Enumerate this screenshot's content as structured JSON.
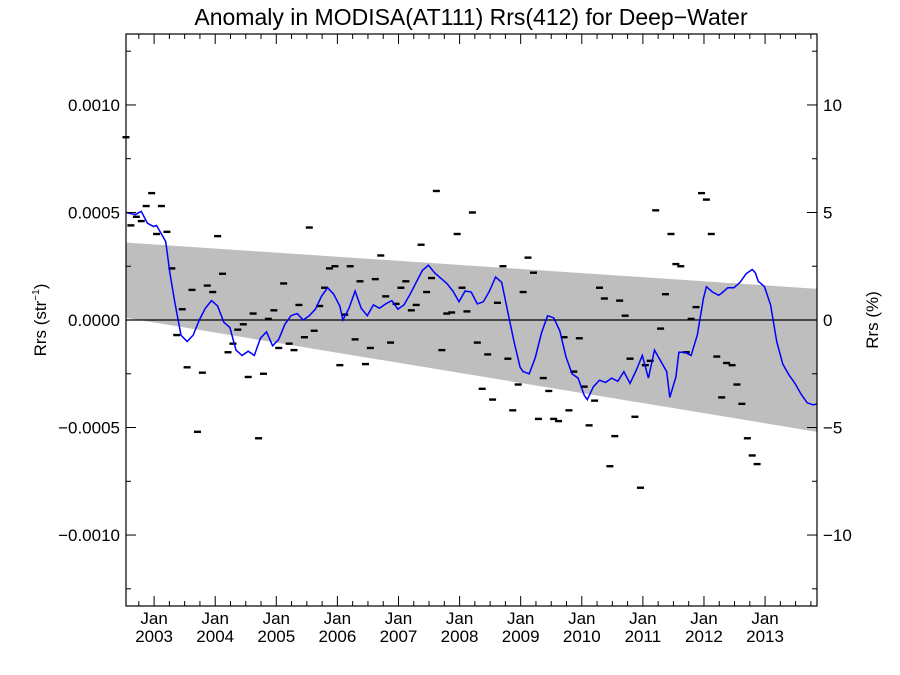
{
  "chart_data": {
    "type": "line",
    "title": "Anomaly in MODISA(AT111) Rrs(412) for Deep−Water",
    "ylabel_left": {
      "base": "Rrs (str",
      "sup": "−1",
      "tail": ")"
    },
    "ylabel_right": "Rrs (%)",
    "xlim": [
      2002.54,
      2013.85
    ],
    "ylim": [
      -0.00133,
      0.00133
    ],
    "right_ylim": [
      -13.3,
      13.3
    ],
    "grid": false,
    "x_ticks": [
      {
        "month": "Jan",
        "year": "2003",
        "x": 2003.0
      },
      {
        "month": "Jan",
        "year": "2004",
        "x": 2004.0
      },
      {
        "month": "Jan",
        "year": "2005",
        "x": 2005.0
      },
      {
        "month": "Jan",
        "year": "2006",
        "x": 2006.0
      },
      {
        "month": "Jan",
        "year": "2007",
        "x": 2007.0
      },
      {
        "month": "Jan",
        "year": "2008",
        "x": 2008.0
      },
      {
        "month": "Jan",
        "year": "2009",
        "x": 2009.0
      },
      {
        "month": "Jan",
        "year": "2010",
        "x": 2010.0
      },
      {
        "month": "Jan",
        "year": "2011",
        "x": 2011.0
      },
      {
        "month": "Jan",
        "year": "2012",
        "x": 2012.0
      },
      {
        "month": "Jan",
        "year": "2013",
        "x": 2013.0
      }
    ],
    "y_ticks_left": [
      {
        "value": 0.001,
        "label": "0.0010"
      },
      {
        "value": 0.0005,
        "label": "0.0005"
      },
      {
        "value": 0.0,
        "label": "0.0000"
      },
      {
        "value": -0.0005,
        "label": "−0.0005"
      },
      {
        "value": -0.001,
        "label": "−0.0010"
      }
    ],
    "y_ticks_right": [
      {
        "value": 10,
        "label": "10"
      },
      {
        "value": 5,
        "label": "5"
      },
      {
        "value": 0,
        "label": "0"
      },
      {
        "value": -5,
        "label": "−5"
      },
      {
        "value": -10,
        "label": "−10"
      }
    ],
    "band": {
      "color": "#bebebe",
      "upper": [
        [
          2002.54,
          0.00036
        ],
        [
          2013.85,
          0.000145
        ]
      ],
      "lower": [
        [
          2002.54,
          1e-05
        ],
        [
          2013.85,
          -0.00052
        ]
      ]
    },
    "zero_line": 0,
    "smooth_series": {
      "color": "#0000ff",
      "points": [
        [
          2002.54,
          0.0005
        ],
        [
          2002.69,
          0.00049
        ],
        [
          2002.79,
          0.000505
        ],
        [
          2002.89,
          0.00045
        ],
        [
          2002.99,
          0.000435
        ],
        [
          2003.04,
          0.00044
        ],
        [
          2003.11,
          0.000405
        ],
        [
          2003.19,
          0.000365
        ],
        [
          2003.26,
          0.000215
        ],
        [
          2003.34,
          8e-05
        ],
        [
          2003.44,
          -7e-05
        ],
        [
          2003.54,
          -0.0001
        ],
        [
          2003.64,
          -7e-05
        ],
        [
          2003.74,
          0.0
        ],
        [
          2003.84,
          5.5e-05
        ],
        [
          2003.94,
          9e-05
        ],
        [
          2004.04,
          6.5e-05
        ],
        [
          2004.14,
          -1e-05
        ],
        [
          2004.24,
          -3.5e-05
        ],
        [
          2004.34,
          -0.00014
        ],
        [
          2004.44,
          -0.000165
        ],
        [
          2004.54,
          -0.000145
        ],
        [
          2004.64,
          -0.000165
        ],
        [
          2004.74,
          -8.5e-05
        ],
        [
          2004.84,
          -5.5e-05
        ],
        [
          2004.94,
          -0.00012
        ],
        [
          2005.04,
          -9e-05
        ],
        [
          2005.14,
          -2e-05
        ],
        [
          2005.24,
          2e-05
        ],
        [
          2005.34,
          3e-05
        ],
        [
          2005.44,
          0.0
        ],
        [
          2005.54,
          2e-05
        ],
        [
          2005.64,
          5e-05
        ],
        [
          2005.74,
          0.00011
        ],
        [
          2005.84,
          0.00015
        ],
        [
          2005.94,
          0.00012
        ],
        [
          2006.04,
          6.5e-05
        ],
        [
          2006.09,
          0.0
        ],
        [
          2006.19,
          5.5e-05
        ],
        [
          2006.29,
          0.000135
        ],
        [
          2006.39,
          5.5e-05
        ],
        [
          2006.49,
          2e-05
        ],
        [
          2006.59,
          7e-05
        ],
        [
          2006.69,
          5.5e-05
        ],
        [
          2006.79,
          7.5e-05
        ],
        [
          2006.89,
          9e-05
        ],
        [
          2006.99,
          5e-05
        ],
        [
          2007.09,
          7e-05
        ],
        [
          2007.19,
          0.00012
        ],
        [
          2007.29,
          0.000175
        ],
        [
          2007.39,
          0.00023
        ],
        [
          2007.49,
          0.000255
        ],
        [
          2007.59,
          0.00022
        ],
        [
          2007.69,
          0.000195
        ],
        [
          2007.79,
          0.00017
        ],
        [
          2007.89,
          0.000135
        ],
        [
          2007.99,
          8.5e-05
        ],
        [
          2008.09,
          0.000135
        ],
        [
          2008.19,
          0.00013
        ],
        [
          2008.29,
          7.5e-05
        ],
        [
          2008.39,
          8.5e-05
        ],
        [
          2008.49,
          0.000135
        ],
        [
          2008.59,
          0.0002
        ],
        [
          2008.69,
          0.000175
        ],
        [
          2008.79,
          3.5e-05
        ],
        [
          2008.89,
          -0.0001
        ],
        [
          2008.99,
          -0.00022
        ],
        [
          2009.04,
          -0.00024
        ],
        [
          2009.14,
          -0.00025
        ],
        [
          2009.24,
          -0.000175
        ],
        [
          2009.34,
          -6e-05
        ],
        [
          2009.44,
          2e-05
        ],
        [
          2009.54,
          1e-05
        ],
        [
          2009.64,
          -5e-05
        ],
        [
          2009.74,
          -0.00017
        ],
        [
          2009.84,
          -0.00025
        ],
        [
          2009.94,
          -0.00027
        ],
        [
          2010.04,
          -0.00035
        ],
        [
          2010.09,
          -0.00037
        ],
        [
          2010.19,
          -0.00031
        ],
        [
          2010.29,
          -0.00028
        ],
        [
          2010.39,
          -0.00029
        ],
        [
          2010.49,
          -0.00027
        ],
        [
          2010.59,
          -0.000285
        ],
        [
          2010.69,
          -0.00024
        ],
        [
          2010.79,
          -0.000295
        ],
        [
          2010.89,
          -0.000235
        ],
        [
          2010.99,
          -0.000165
        ],
        [
          2011.09,
          -0.00027
        ],
        [
          2011.19,
          -0.00014
        ],
        [
          2011.29,
          -0.00019
        ],
        [
          2011.39,
          -0.00024
        ],
        [
          2011.44,
          -0.00036
        ],
        [
          2011.54,
          -0.000265
        ],
        [
          2011.59,
          -0.00015
        ],
        [
          2011.69,
          -0.00015
        ],
        [
          2011.79,
          -0.000165
        ],
        [
          2011.89,
          -7e-05
        ],
        [
          2011.99,
          0.0001
        ],
        [
          2012.04,
          0.000155
        ],
        [
          2012.14,
          0.00013
        ],
        [
          2012.24,
          0.000115
        ],
        [
          2012.29,
          0.000125
        ],
        [
          2012.39,
          0.00015
        ],
        [
          2012.49,
          0.00015
        ],
        [
          2012.59,
          0.000175
        ],
        [
          2012.69,
          0.000215
        ],
        [
          2012.79,
          0.000235
        ],
        [
          2012.84,
          0.00022
        ],
        [
          2012.89,
          0.00018
        ],
        [
          2012.99,
          0.000155
        ],
        [
          2013.09,
          7e-05
        ],
        [
          2013.19,
          -0.0001
        ],
        [
          2013.29,
          -0.000205
        ],
        [
          2013.39,
          -0.000255
        ],
        [
          2013.49,
          -0.000295
        ],
        [
          2013.59,
          -0.000345
        ],
        [
          2013.69,
          -0.000385
        ],
        [
          2013.79,
          -0.000395
        ],
        [
          2013.85,
          -0.00039
        ]
      ]
    },
    "monthly_points": {
      "color": "#000000",
      "points": [
        [
          2002.54,
          0.00085
        ],
        [
          2002.62,
          0.00044
        ],
        [
          2002.71,
          0.00048
        ],
        [
          2002.79,
          0.00046
        ],
        [
          2002.87,
          0.00053
        ],
        [
          2002.96,
          0.00059
        ],
        [
          2003.04,
          0.0004
        ],
        [
          2003.12,
          0.00053
        ],
        [
          2003.21,
          0.00041
        ],
        [
          2003.29,
          0.00024
        ],
        [
          2003.37,
          -7e-05
        ],
        [
          2003.46,
          5e-05
        ],
        [
          2003.54,
          -0.00022
        ],
        [
          2003.62,
          0.00014
        ],
        [
          2003.71,
          -0.00052
        ],
        [
          2003.79,
          -0.000245
        ],
        [
          2003.87,
          0.00016
        ],
        [
          2003.96,
          0.00013
        ],
        [
          2004.04,
          0.00039
        ],
        [
          2004.12,
          0.000215
        ],
        [
          2004.21,
          -0.00015
        ],
        [
          2004.29,
          -0.00011
        ],
        [
          2004.37,
          -4.5e-05
        ],
        [
          2004.46,
          -2e-05
        ],
        [
          2004.54,
          -0.000265
        ],
        [
          2004.62,
          3e-05
        ],
        [
          2004.71,
          -0.00055
        ],
        [
          2004.79,
          -0.00025
        ],
        [
          2004.87,
          5e-06
        ],
        [
          2004.96,
          4.5e-05
        ],
        [
          2005.04,
          -0.00013
        ],
        [
          2005.12,
          0.00017
        ],
        [
          2005.21,
          -0.00011
        ],
        [
          2005.29,
          -0.00014
        ],
        [
          2005.37,
          7e-05
        ],
        [
          2005.46,
          -8e-05
        ],
        [
          2005.54,
          0.00043
        ],
        [
          2005.62,
          -5e-05
        ],
        [
          2005.71,
          6.5e-05
        ],
        [
          2005.79,
          0.00015
        ],
        [
          2005.87,
          0.00024
        ],
        [
          2005.96,
          0.00025
        ],
        [
          2006.04,
          -0.00021
        ],
        [
          2006.12,
          2.5e-05
        ],
        [
          2006.21,
          0.00025
        ],
        [
          2006.29,
          -9e-05
        ],
        [
          2006.37,
          0.00018
        ],
        [
          2006.46,
          -0.000205
        ],
        [
          2006.54,
          -0.00013
        ],
        [
          2006.62,
          0.00019
        ],
        [
          2006.71,
          0.0003
        ],
        [
          2006.79,
          0.00011
        ],
        [
          2006.87,
          -0.000105
        ],
        [
          2006.96,
          7.5e-05
        ],
        [
          2007.04,
          0.00015
        ],
        [
          2007.12,
          0.00018
        ],
        [
          2007.21,
          4.5e-05
        ],
        [
          2007.29,
          7e-05
        ],
        [
          2007.37,
          0.00035
        ],
        [
          2007.46,
          0.00013
        ],
        [
          2007.54,
          0.000195
        ],
        [
          2007.62,
          0.0006
        ],
        [
          2007.71,
          -0.00014
        ],
        [
          2007.79,
          3e-05
        ],
        [
          2007.87,
          3.5e-05
        ],
        [
          2007.96,
          0.0004
        ],
        [
          2008.04,
          0.00015
        ],
        [
          2008.12,
          4e-05
        ],
        [
          2008.21,
          0.0005
        ],
        [
          2008.29,
          -0.000105
        ],
        [
          2008.37,
          -0.00032
        ],
        [
          2008.46,
          -0.00016
        ],
        [
          2008.54,
          -0.00037
        ],
        [
          2008.62,
          8e-05
        ],
        [
          2008.71,
          0.00025
        ],
        [
          2008.79,
          -0.00018
        ],
        [
          2008.87,
          -0.00042
        ],
        [
          2008.96,
          -0.0003
        ],
        [
          2009.04,
          0.00013
        ],
        [
          2009.12,
          0.00029
        ],
        [
          2009.21,
          0.00022
        ],
        [
          2009.29,
          -0.00046
        ],
        [
          2009.37,
          -0.00027
        ],
        [
          2009.46,
          -0.00033
        ],
        [
          2009.54,
          -0.00046
        ],
        [
          2009.62,
          -0.00047
        ],
        [
          2009.71,
          -8e-05
        ],
        [
          2009.79,
          -0.00042
        ],
        [
          2009.87,
          -0.00024
        ],
        [
          2009.96,
          -8.5e-05
        ],
        [
          2010.04,
          -0.00031
        ],
        [
          2010.12,
          -0.00049
        ],
        [
          2010.21,
          -0.000375
        ],
        [
          2010.29,
          0.00015
        ],
        [
          2010.37,
          0.0001
        ],
        [
          2010.46,
          -0.00068
        ],
        [
          2010.54,
          -0.00054
        ],
        [
          2010.62,
          9e-05
        ],
        [
          2010.71,
          2e-05
        ],
        [
          2010.79,
          -0.00018
        ],
        [
          2010.87,
          -0.00045
        ],
        [
          2010.96,
          -0.00078
        ],
        [
          2011.04,
          -0.00021
        ],
        [
          2011.12,
          -0.00019
        ],
        [
          2011.21,
          0.00051
        ],
        [
          2011.29,
          -4e-05
        ],
        [
          2011.37,
          0.00012
        ],
        [
          2011.46,
          0.0004
        ],
        [
          2011.54,
          0.00026
        ],
        [
          2011.62,
          0.00025
        ],
        [
          2011.71,
          -0.00015
        ],
        [
          2011.79,
          5e-06
        ],
        [
          2011.87,
          6e-05
        ],
        [
          2011.96,
          0.00059
        ],
        [
          2012.04,
          0.00056
        ],
        [
          2012.12,
          0.0004
        ],
        [
          2012.21,
          -0.00017
        ],
        [
          2012.29,
          -0.00036
        ],
        [
          2012.37,
          -0.0002
        ],
        [
          2012.46,
          -0.00021
        ],
        [
          2012.54,
          -0.0003
        ],
        [
          2012.62,
          -0.00039
        ],
        [
          2012.71,
          -0.00055
        ],
        [
          2012.79,
          -0.00063
        ],
        [
          2012.87,
          -0.00067
        ]
      ]
    }
  }
}
